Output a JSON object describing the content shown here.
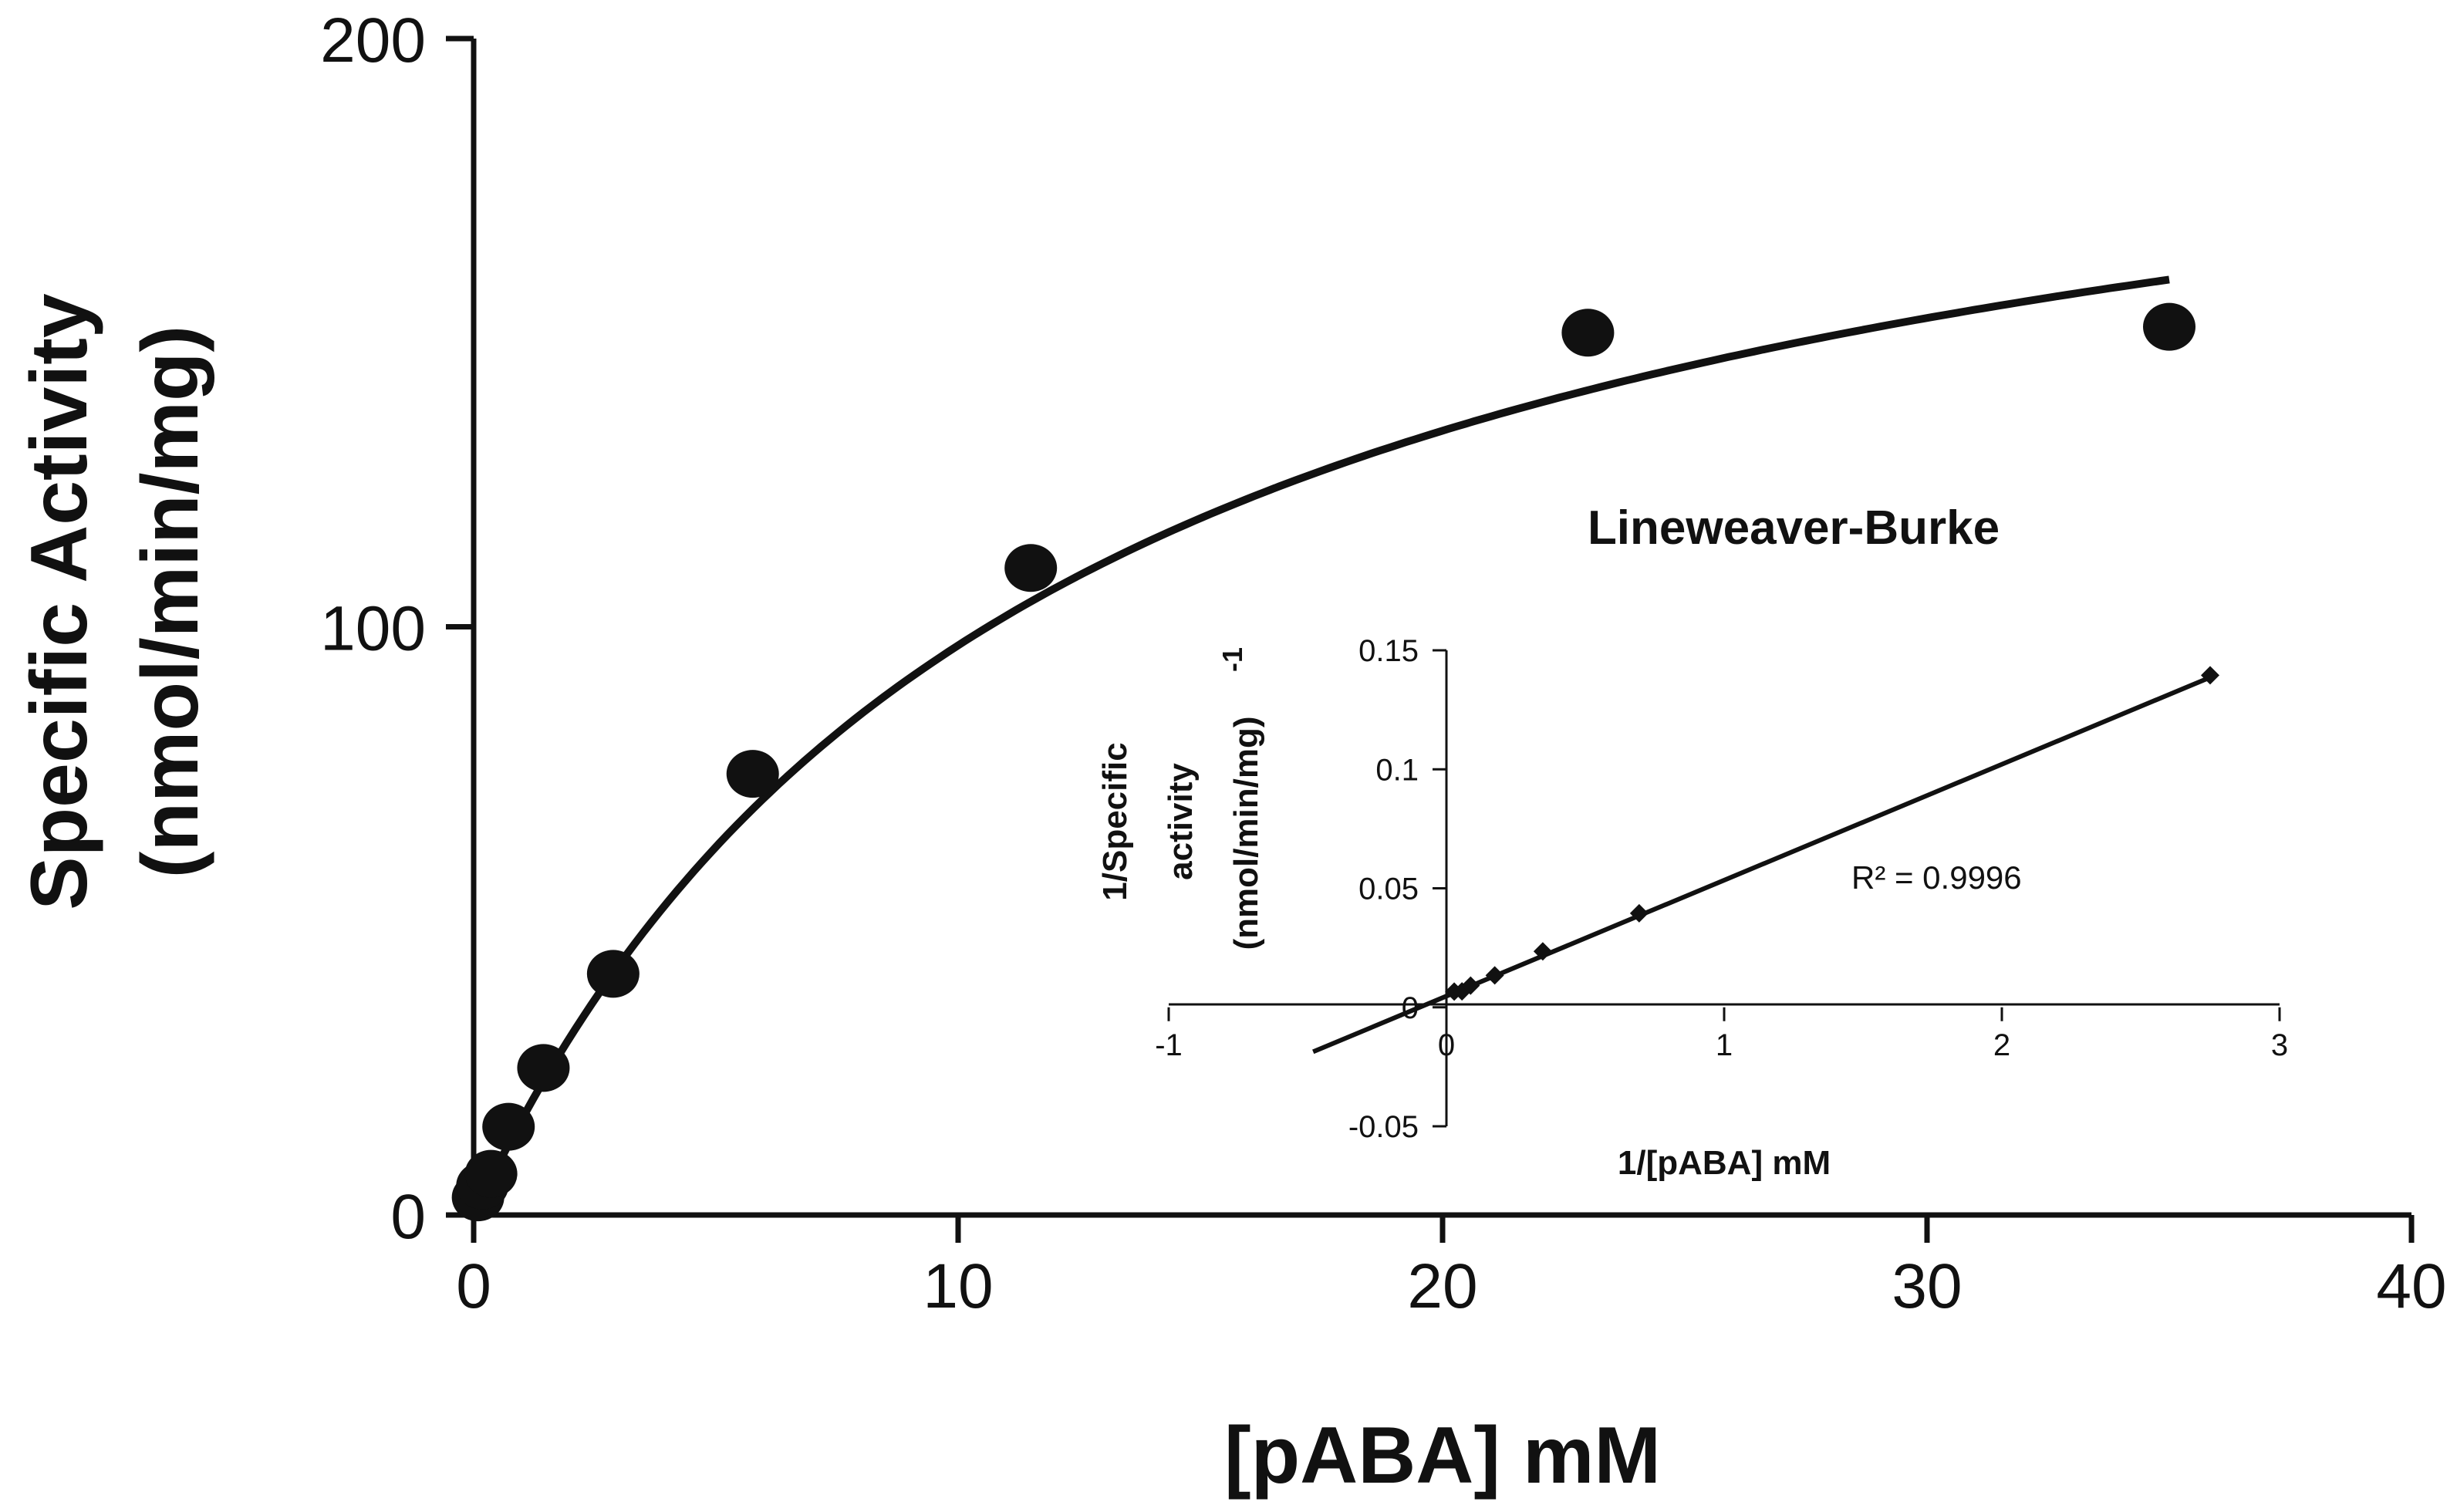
{
  "chart_data": [
    {
      "type": "scatter",
      "xlabel": "[pABA] mM",
      "ylabel_line1": "Specific Activity",
      "ylabel_line2": "(nmol/min/mg)",
      "xlim": [
        0,
        40
      ],
      "ylim": [
        0,
        200
      ],
      "xticks": [
        0,
        10,
        20,
        30,
        40
      ],
      "yticks": [
        0,
        100,
        200
      ],
      "grid": false,
      "series": [
        {
          "x": [
            0.09,
            0.18,
            0.36,
            0.72,
            1.44,
            2.88,
            5.76,
            11.5,
            23.0,
            35.0
          ],
          "y": [
            3,
            5,
            7,
            15,
            25,
            41,
            75,
            110,
            150,
            151
          ]
        }
      ],
      "fit": {
        "model": "michaelis-menten",
        "vmax": 214,
        "km": 12.1,
        "x_range": [
          0,
          35
        ]
      }
    },
    {
      "type": "scatter",
      "title": "Lineweaver-Burke",
      "xlabel": "1/[pABA] mM",
      "ylabel_line1": "1/Specific",
      "ylabel_line2": "activity",
      "ylabel_line3": "(nmol/min/mg)",
      "ylabel_superscript": "-1",
      "xlim": [
        -1,
        3
      ],
      "ylim": [
        -0.05,
        0.15
      ],
      "xticks": [
        -1,
        0,
        1,
        2,
        3
      ],
      "xtick_labels": [
        "-1",
        "0",
        "1",
        "2",
        "3"
      ],
      "yticks": [
        -0.05,
        0,
        0.05,
        0.1,
        0.15
      ],
      "ytick_labels": [
        "-0.05",
        "0",
        "0.05",
        "0.1",
        "0.15"
      ],
      "grid": false,
      "series": [
        {
          "x": [
            0.028,
            0.056,
            0.087,
            0.174,
            0.347,
            0.694,
            2.75
          ],
          "y": [
            0.0066,
            0.0067,
            0.0091,
            0.0134,
            0.0235,
            0.0395,
            0.1395
          ]
        }
      ],
      "trendline": {
        "slope": 0.0487,
        "intercept": 0.0047,
        "x_range": [
          -0.48,
          2.75
        ]
      },
      "annotation": "R² = 0.9996"
    }
  ]
}
